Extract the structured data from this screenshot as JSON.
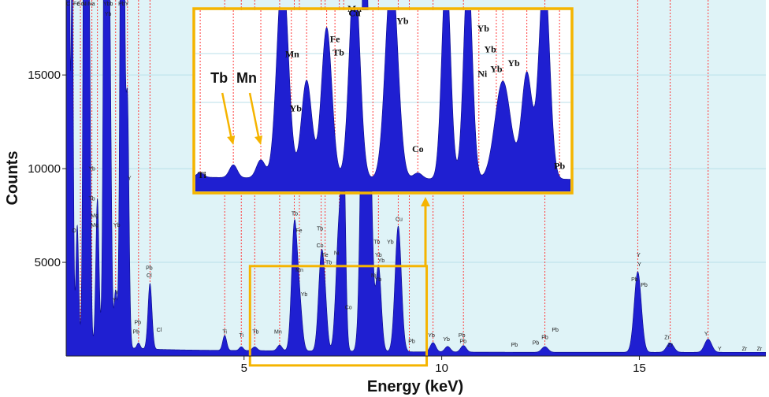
{
  "chart_data": {
    "type": "area",
    "xlabel": "Energy (keV)",
    "ylabel": "Counts",
    "xlim": [
      0.5,
      18.2
    ],
    "ylim": [
      0,
      19000
    ],
    "x_ticks": [
      5,
      10,
      15
    ],
    "y_ticks": [
      5000,
      10000,
      15000
    ],
    "grid": true,
    "colors": {
      "spectrum": "#1f1fd1",
      "background": "#dff3f7",
      "grid": "#b9dfe8",
      "marker": "#ff3b3b",
      "highlight": "#f5b400"
    },
    "peaks": [
      {
        "x": 0.55,
        "h": 45000,
        "w": 0.03
      },
      {
        "x": 0.65,
        "h": 20000,
        "w": 0.03
      },
      {
        "x": 0.78,
        "h": 6200,
        "w": 0.035
      },
      {
        "x": 0.98,
        "h": 45000,
        "w": 0.04
      },
      {
        "x": 1.08,
        "h": 18000,
        "w": 0.035
      },
      {
        "x": 1.29,
        "h": 7800,
        "w": 0.04
      },
      {
        "x": 1.5,
        "h": 45000,
        "w": 0.045
      },
      {
        "x": 1.6,
        "h": 16000,
        "w": 0.04
      },
      {
        "x": 1.75,
        "h": 3000,
        "w": 0.04
      },
      {
        "x": 1.92,
        "h": 45000,
        "w": 0.045
      },
      {
        "x": 2.05,
        "h": 13000,
        "w": 0.04
      },
      {
        "x": 2.33,
        "h": 300,
        "w": 0.04
      },
      {
        "x": 2.62,
        "h": 3500,
        "w": 0.05
      },
      {
        "x": 4.51,
        "h": 800,
        "w": 0.05
      },
      {
        "x": 4.93,
        "h": 200,
        "w": 0.05
      },
      {
        "x": 5.27,
        "h": 200,
        "w": 0.06
      },
      {
        "x": 5.9,
        "h": 300,
        "w": 0.06
      },
      {
        "x": 6.27,
        "h": 6500,
        "w": 0.07
      },
      {
        "x": 6.4,
        "h": 2500,
        "w": 0.07
      },
      {
        "x": 6.95,
        "h": 4800,
        "w": 0.07
      },
      {
        "x": 7.05,
        "h": 2000,
        "w": 0.06
      },
      {
        "x": 7.41,
        "h": 6900,
        "w": 0.08
      },
      {
        "x": 7.52,
        "h": 9000,
        "w": 0.05
      },
      {
        "x": 8.05,
        "h": 25000,
        "w": 0.08
      },
      {
        "x": 8.2,
        "h": 7500,
        "w": 0.06
      },
      {
        "x": 8.4,
        "h": 4600,
        "w": 0.07
      },
      {
        "x": 8.9,
        "h": 6700,
        "w": 0.08
      },
      {
        "x": 9.78,
        "h": 500,
        "w": 0.07
      },
      {
        "x": 10.15,
        "h": 300,
        "w": 0.07
      },
      {
        "x": 10.55,
        "h": 350,
        "w": 0.07
      },
      {
        "x": 12.61,
        "h": 300,
        "w": 0.08
      },
      {
        "x": 14.96,
        "h": 4300,
        "w": 0.09
      },
      {
        "x": 15.78,
        "h": 500,
        "w": 0.09
      },
      {
        "x": 16.74,
        "h": 700,
        "w": 0.09
      }
    ],
    "peak_labels": [
      {
        "x": 0.55,
        "y": 18700,
        "text": "C"
      },
      {
        "x": 0.76,
        "y": 18700,
        "text": "Fe"
      },
      {
        "x": 0.86,
        "y": 18700,
        "text": "Co"
      },
      {
        "x": 0.97,
        "y": 18700,
        "text": "Ni"
      },
      {
        "x": 1.14,
        "y": 18700,
        "text": "Na"
      },
      {
        "x": 1.56,
        "y": 18700,
        "text": "Ybb"
      },
      {
        "x": 1.56,
        "y": 18150,
        "text": "Yb"
      },
      {
        "x": 1.95,
        "y": 18700,
        "text": "PbY"
      },
      {
        "x": 0.7,
        "y": 6600,
        "text": "O"
      },
      {
        "x": 1.15,
        "y": 9900,
        "text": "Yb"
      },
      {
        "x": 1.15,
        "y": 8300,
        "text": "Tb"
      },
      {
        "x": 1.22,
        "y": 7400,
        "text": "Mg"
      },
      {
        "x": 1.22,
        "y": 6900,
        "text": "Mg"
      },
      {
        "x": 1.78,
        "y": 6900,
        "text": "Yb"
      },
      {
        "x": 2.1,
        "y": 9400,
        "text": "Y"
      },
      {
        "x": 1.78,
        "y": 3300,
        "text": "Y"
      },
      {
        "x": 1.72,
        "y": 2900,
        "text": "Y"
      },
      {
        "x": 2.6,
        "y": 4600,
        "text": "Pb"
      },
      {
        "x": 2.6,
        "y": 4200,
        "text": "Cl"
      },
      {
        "x": 2.31,
        "y": 1700,
        "text": "Pb"
      },
      {
        "x": 2.27,
        "y": 1200,
        "text": "Pb"
      },
      {
        "x": 2.85,
        "y": 1300,
        "text": "Cl"
      },
      {
        "x": 4.51,
        "y": 1200,
        "text": "Ti"
      },
      {
        "x": 4.93,
        "y": 1000,
        "text": "Ti"
      },
      {
        "x": 5.29,
        "y": 1200,
        "text": "Tb"
      },
      {
        "x": 5.86,
        "y": 1200,
        "text": "Mn"
      },
      {
        "x": 6.28,
        "y": 7500,
        "text": "Tb"
      },
      {
        "x": 6.39,
        "y": 6600,
        "text": "Fe"
      },
      {
        "x": 6.4,
        "y": 4500,
        "text": "Mn"
      },
      {
        "x": 6.52,
        "y": 3200,
        "text": "Yb"
      },
      {
        "x": 6.92,
        "y": 6700,
        "text": "Tb"
      },
      {
        "x": 6.92,
        "y": 5800,
        "text": "Co"
      },
      {
        "x": 7.05,
        "y": 5300,
        "text": "Fe"
      },
      {
        "x": 7.14,
        "y": 4900,
        "text": "Tb"
      },
      {
        "x": 7.34,
        "y": 5400,
        "text": "Ni"
      },
      {
        "x": 7.64,
        "y": 2500,
        "text": "Co"
      },
      {
        "x": 8.36,
        "y": 6000,
        "text": "Tb"
      },
      {
        "x": 8.4,
        "y": 5300,
        "text": "Yb"
      },
      {
        "x": 8.47,
        "y": 5000,
        "text": "Yb"
      },
      {
        "x": 8.28,
        "y": 4200,
        "text": "Ni"
      },
      {
        "x": 8.39,
        "y": 4000,
        "text": "Yb"
      },
      {
        "x": 8.7,
        "y": 6000,
        "text": "Yb"
      },
      {
        "x": 8.92,
        "y": 7200,
        "text": "Cu"
      },
      {
        "x": 9.24,
        "y": 700,
        "text": "Pb"
      },
      {
        "x": 9.74,
        "y": 1000,
        "text": "Yb"
      },
      {
        "x": 10.12,
        "y": 800,
        "text": "Yb"
      },
      {
        "x": 10.51,
        "y": 1000,
        "text": "Pb"
      },
      {
        "x": 10.54,
        "y": 700,
        "text": "Pb"
      },
      {
        "x": 11.84,
        "y": 500,
        "text": "Pb"
      },
      {
        "x": 12.38,
        "y": 600,
        "text": "Pb"
      },
      {
        "x": 12.61,
        "y": 900,
        "text": "Pb"
      },
      {
        "x": 12.87,
        "y": 1300,
        "text": "Pb"
      },
      {
        "x": 14.98,
        "y": 5300,
        "text": "Y"
      },
      {
        "x": 15.0,
        "y": 4800,
        "text": "Y"
      },
      {
        "x": 14.88,
        "y": 4000,
        "text": "Pb"
      },
      {
        "x": 15.12,
        "y": 3700,
        "text": "Pb"
      },
      {
        "x": 15.7,
        "y": 900,
        "text": "Zr"
      },
      {
        "x": 15.78,
        "y": 500,
        "text": "Zr"
      },
      {
        "x": 16.69,
        "y": 1100,
        "text": "Y"
      },
      {
        "x": 17.03,
        "y": 300,
        "text": "Y"
      },
      {
        "x": 17.66,
        "y": 300,
        "text": "Zr"
      },
      {
        "x": 18.04,
        "y": 300,
        "text": "Zr"
      }
    ],
    "marker_lines": [
      0.55,
      0.68,
      0.86,
      0.98,
      1.08,
      1.15,
      1.29,
      1.5,
      1.6,
      1.75,
      1.92,
      2.05,
      2.33,
      2.62,
      4.51,
      4.93,
      5.27,
      5.9,
      6.27,
      6.4,
      6.95,
      7.05,
      7.41,
      7.52,
      8.05,
      8.4,
      8.9,
      9.18,
      9.78,
      10.55,
      12.61,
      14.96,
      15.78,
      16.74
    ],
    "zoom_box": {
      "x_range": [
        5.15,
        9.62
      ],
      "y_range": [
        -500,
        4800
      ]
    },
    "inset": {
      "x_range": [
        4.4,
        13.0
      ],
      "y_range": [
        200,
        1400
      ],
      "peaks": [
        {
          "x": 4.51,
          "h": 30,
          "w": 0.08
        },
        {
          "x": 5.27,
          "h": 85,
          "w": 0.09
        },
        {
          "x": 5.9,
          "h": 120,
          "w": 0.1
        },
        {
          "x": 6.4,
          "h": 1400,
          "w": 0.13
        },
        {
          "x": 6.95,
          "h": 650,
          "w": 0.12
        },
        {
          "x": 7.41,
          "h": 1000,
          "w": 0.12
        },
        {
          "x": 8.05,
          "h": 1400,
          "w": 0.12
        },
        {
          "x": 8.9,
          "h": 1400,
          "w": 0.14
        },
        {
          "x": 9.5,
          "h": 40,
          "w": 0.1
        },
        {
          "x": 10.15,
          "h": 1400,
          "w": 0.1
        },
        {
          "x": 10.65,
          "h": 1400,
          "w": 0.1
        },
        {
          "x": 11.45,
          "h": 650,
          "w": 0.18
        },
        {
          "x": 12.0,
          "h": 700,
          "w": 0.12
        },
        {
          "x": 12.4,
          "h": 1400,
          "w": 0.12
        }
      ],
      "labels": [
        {
          "x": 4.55,
          "y": 290,
          "text": "Ti"
        },
        {
          "x": 6.62,
          "y": 1090,
          "text": "Mn"
        },
        {
          "x": 6.7,
          "y": 730,
          "text": "Yb"
        },
        {
          "x": 7.6,
          "y": 1190,
          "text": "Fe"
        },
        {
          "x": 7.68,
          "y": 1100,
          "text": "Tb"
        },
        {
          "x": 8.05,
          "y": 1390,
          "text": "Mu"
        },
        {
          "x": 8.05,
          "y": 1360,
          "text": "Cu"
        },
        {
          "x": 9.15,
          "y": 1310,
          "text": "Yb"
        },
        {
          "x": 9.5,
          "y": 460,
          "text": "Co"
        },
        {
          "x": 11.0,
          "y": 1260,
          "text": "Yb"
        },
        {
          "x": 11.16,
          "y": 1120,
          "text": "Yb"
        },
        {
          "x": 10.98,
          "y": 960,
          "text": "Ni"
        },
        {
          "x": 11.3,
          "y": 990,
          "text": "Yb"
        },
        {
          "x": 11.7,
          "y": 1030,
          "text": "Yb"
        },
        {
          "x": 12.75,
          "y": 350,
          "text": "Pb"
        }
      ],
      "markers": [
        4.51,
        5.27,
        5.9,
        6.4,
        6.6,
        6.95,
        7.41,
        7.6,
        8.05,
        8.47,
        8.9,
        9.5,
        10.15,
        10.65,
        10.9,
        11.3,
        11.45,
        12.0,
        12.4,
        12.75
      ],
      "callouts": [
        {
          "text": "Tb",
          "x": 5.27
        },
        {
          "text": "Mn",
          "x": 5.9
        }
      ]
    }
  }
}
